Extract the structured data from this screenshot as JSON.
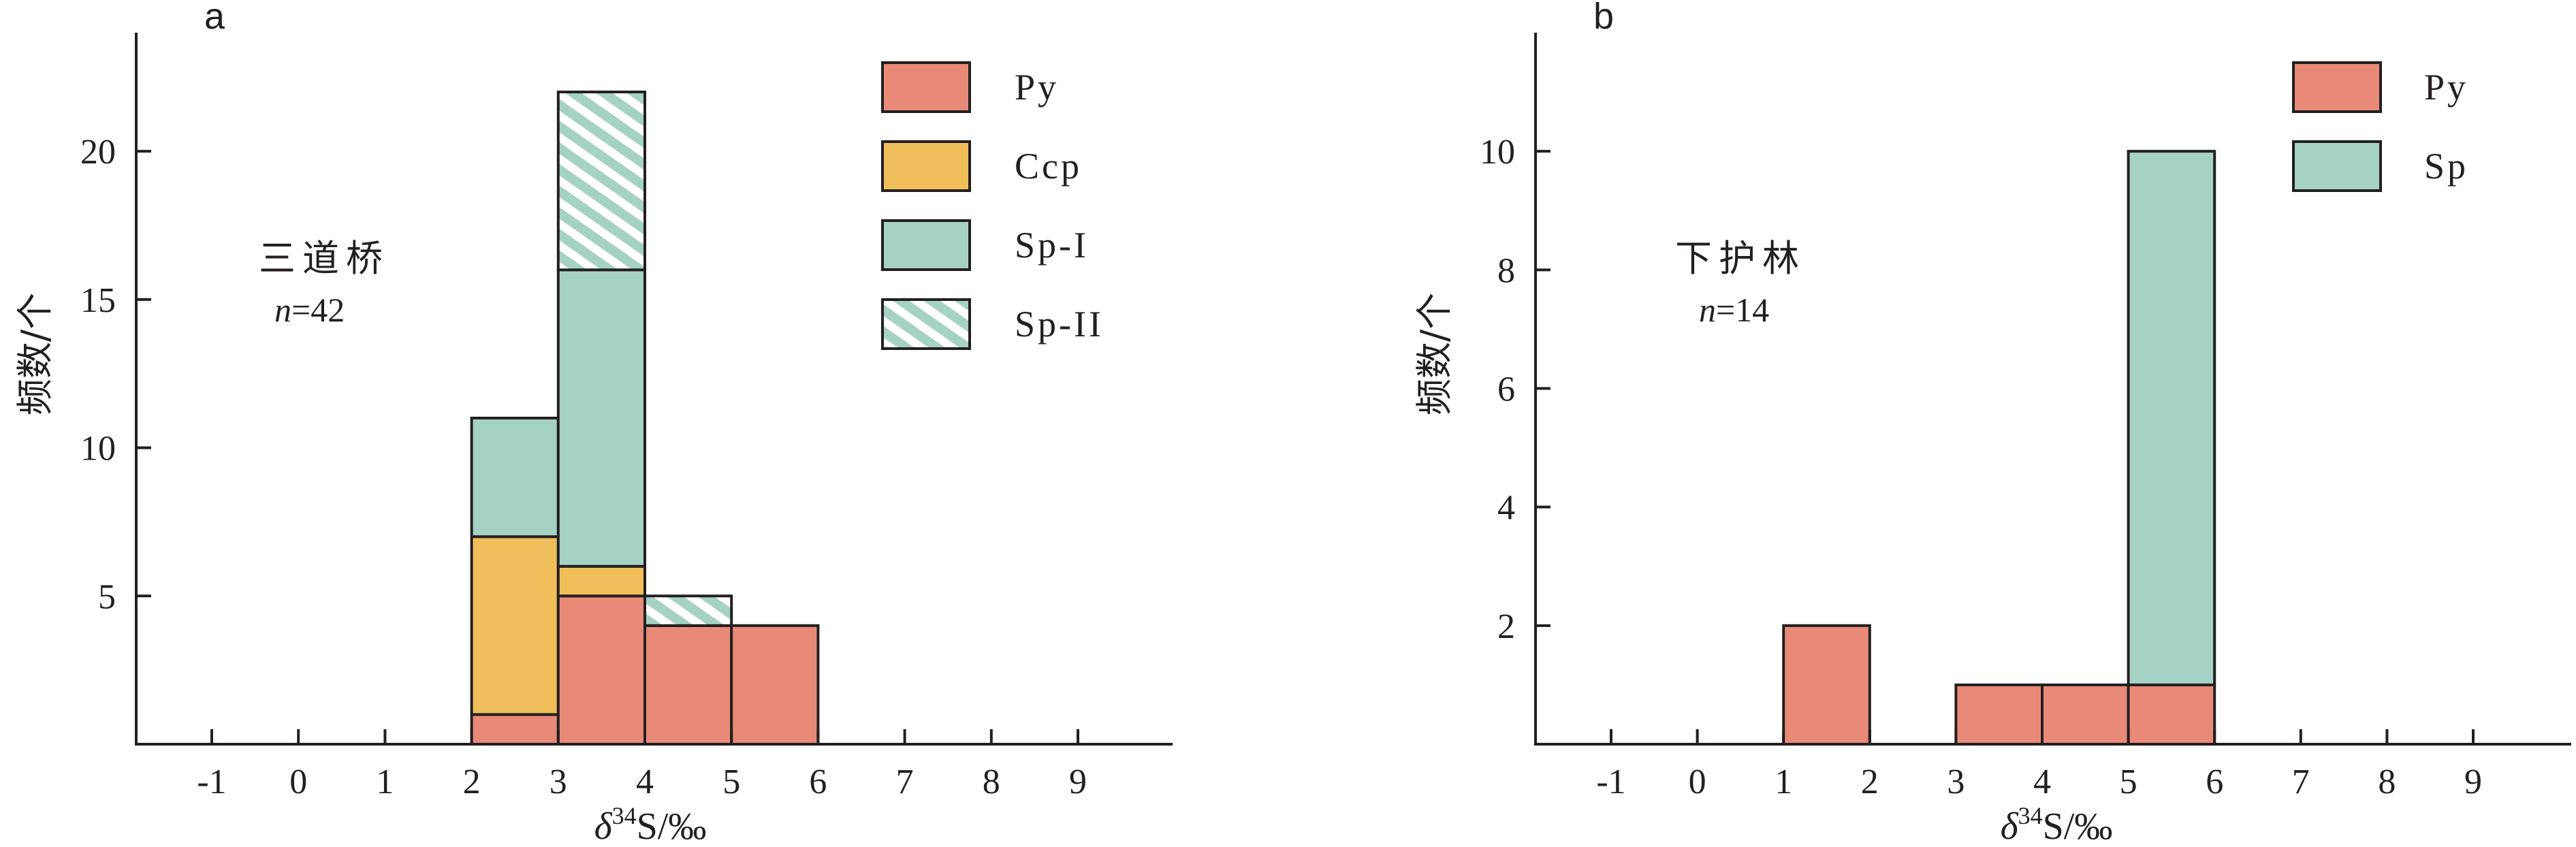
{
  "colors": {
    "Py": "#e98a78",
    "Ccp": "#f0be5a",
    "Sp": "#a5d2c5",
    "Sp-I": "#a5d2c5",
    "Sp-II_hatch": "#a5d2c5",
    "frame": "#231f20"
  },
  "chart_data": [
    {
      "type": "bar",
      "stacked": true,
      "panel_label": "a",
      "annotation": {
        "location": "三道桥",
        "n_label": "n",
        "n_value": "=42"
      },
      "xlabel": "δ34S/‰",
      "ylabel": "频数/个",
      "xlim": [
        -2,
        10
      ],
      "ylim": [
        0,
        24
      ],
      "x_ticks": [
        -1,
        0,
        1,
        2,
        3,
        4,
        5,
        6,
        7,
        8,
        9
      ],
      "y_ticks": [
        5,
        10,
        15,
        20
      ],
      "bins": [
        [
          2,
          3
        ],
        [
          3,
          4
        ],
        [
          4,
          5
        ],
        [
          5,
          6
        ]
      ],
      "series": [
        {
          "name": "Py",
          "values": [
            1,
            5,
            4,
            4
          ]
        },
        {
          "name": "Ccp",
          "values": [
            6,
            1,
            0,
            0
          ]
        },
        {
          "name": "Sp-I",
          "values": [
            4,
            10,
            0,
            0
          ]
        },
        {
          "name": "Sp-II",
          "values": [
            0,
            6,
            1,
            0
          ],
          "hatched": true
        }
      ],
      "legend": [
        "Py",
        "Ccp",
        "Sp-I",
        "Sp-II"
      ],
      "legend_position": "top-right",
      "grid": false
    },
    {
      "type": "bar",
      "stacked": true,
      "panel_label": "b",
      "annotation": {
        "location": "下护林",
        "n_label": "n",
        "n_value": "=14"
      },
      "xlabel": "δ34S/‰",
      "ylabel": "频数/个",
      "xlim": [
        -2,
        10
      ],
      "ylim": [
        0,
        12
      ],
      "x_ticks": [
        -1,
        0,
        1,
        2,
        3,
        4,
        5,
        6,
        7,
        8,
        9
      ],
      "y_ticks": [
        2,
        4,
        6,
        8,
        10
      ],
      "bins": [
        [
          1,
          2
        ],
        [
          3,
          4
        ],
        [
          4,
          5
        ],
        [
          5,
          6
        ]
      ],
      "series": [
        {
          "name": "Py",
          "values": [
            2,
            1,
            1,
            1
          ]
        },
        {
          "name": "Sp",
          "values": [
            0,
            0,
            0,
            9
          ]
        }
      ],
      "legend": [
        "Py",
        "Sp"
      ],
      "legend_position": "top-right",
      "grid": false
    }
  ]
}
